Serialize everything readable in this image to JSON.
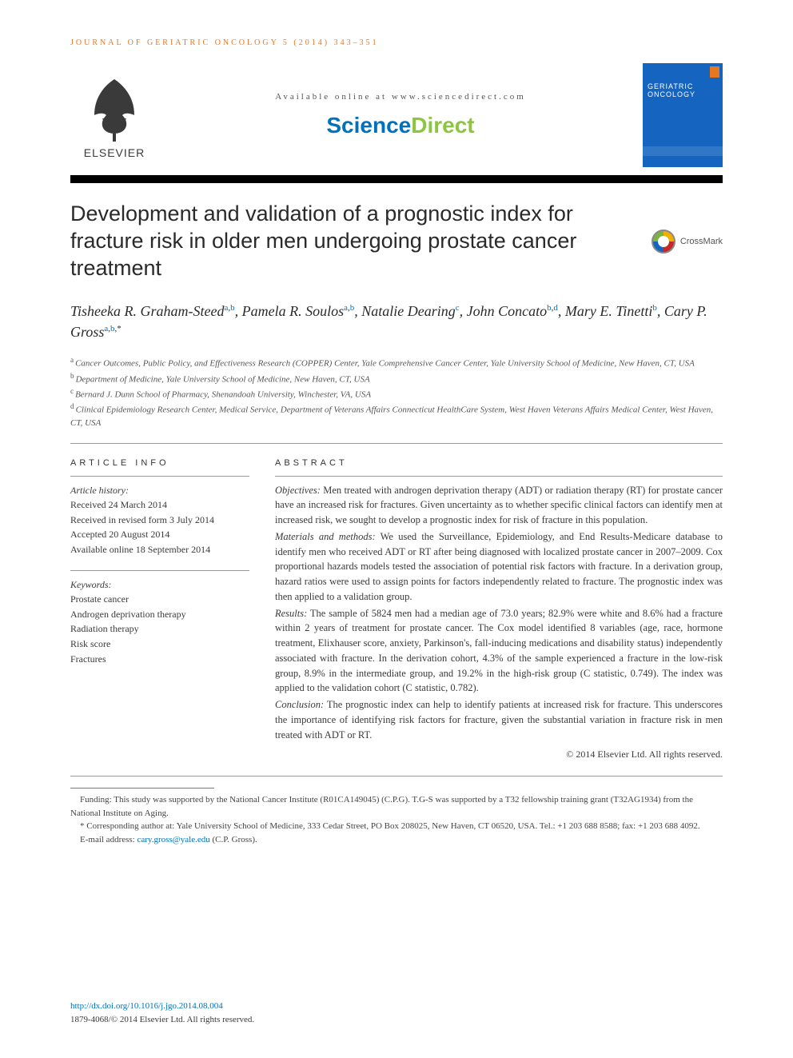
{
  "journal_ref": "JOURNAL OF GERIATRIC ONCOLOGY 5 (2014) 343–351",
  "availability": "Available online at www.sciencedirect.com",
  "sciencedirect": {
    "part1": "Science",
    "part2": "Direct"
  },
  "publisher_label": "ELSEVIER",
  "cover": {
    "title": "GERIATRIC\nONCOLOGY"
  },
  "crossmark_label": "CrossMark",
  "title": "Development and validation of a prognostic index for fracture risk in older men undergoing prostate cancer treatment",
  "authors_html": "Tisheeka R. Graham-Steed<sup><a>a</a>,<a>b</a></sup>, Pamela R. Soulos<sup><a>a</a>,<a>b</a></sup>, Natalie Dearing<sup><a>c</a></sup>, John Concato<sup><a>b</a>,<a>d</a></sup>, Mary E. Tinetti<sup><a>b</a></sup>, Cary P. Gross<sup><a>a</a>,<a>b</a>,*</sup>",
  "affiliations": [
    {
      "sup": "a",
      "text": "Cancer Outcomes, Public Policy, and Effectiveness Research (COPPER) Center, Yale Comprehensive Cancer Center, Yale University School of Medicine, New Haven, CT, USA"
    },
    {
      "sup": "b",
      "text": "Department of Medicine, Yale University School of Medicine, New Haven, CT, USA"
    },
    {
      "sup": "c",
      "text": "Bernard J. Dunn School of Pharmacy, Shenandoah University, Winchester, VA, USA"
    },
    {
      "sup": "d",
      "text": "Clinical Epidemiology Research Center, Medical Service, Department of Veterans Affairs Connecticut HealthCare System, West Haven Veterans Affairs Medical Center, West Haven, CT, USA"
    }
  ],
  "article_info_head": "ARTICLE INFO",
  "abstract_head": "ABSTRACT",
  "history_label": "Article history:",
  "history": [
    "Received 24 March 2014",
    "Received in revised form 3 July 2014",
    "Accepted 20 August 2014",
    "Available online 18 September 2014"
  ],
  "keywords_label": "Keywords:",
  "keywords": [
    "Prostate cancer",
    "Androgen deprivation therapy",
    "Radiation therapy",
    "Risk score",
    "Fractures"
  ],
  "abstract": {
    "objectives_lbl": "Objectives:",
    "objectives": " Men treated with androgen deprivation therapy (ADT) or radiation therapy (RT) for prostate cancer have an increased risk for fractures. Given uncertainty as to whether specific clinical factors can identify men at increased risk, we sought to develop a prognostic index for risk of fracture in this population.",
    "methods_lbl": "Materials and methods:",
    "methods": " We used the Surveillance, Epidemiology, and End Results-Medicare database to identify men who received ADT or RT after being diagnosed with localized prostate cancer in 2007–2009. Cox proportional hazards models tested the association of potential risk factors with fracture. In a derivation group, hazard ratios were used to assign points for factors independently related to fracture. The prognostic index was then applied to a validation group.",
    "results_lbl": "Results:",
    "results": " The sample of 5824 men had a median age of 73.0 years; 82.9% were white and 8.6% had a fracture within 2 years of treatment for prostate cancer. The Cox model identified 8 variables (age, race, hormone treatment, Elixhauser score, anxiety, Parkinson's, fall-inducing medications and disability status) independently associated with fracture. In the derivation cohort, 4.3% of the sample experienced a fracture in the low-risk group, 8.9% in the intermediate group, and 19.2% in the high-risk group (C statistic, 0.749). The index was applied to the validation cohort (C statistic, 0.782).",
    "conclusion_lbl": "Conclusion:",
    "conclusion": " The prognostic index can help to identify patients at increased risk for fracture. This underscores the importance of identifying risk factors for fracture, given the substantial variation in fracture risk in men treated with ADT or RT."
  },
  "copyright": "© 2014 Elsevier Ltd. All rights reserved.",
  "footnotes": {
    "funding": "Funding: This study was supported by the National Cancer Institute (R01CA149045) (C.P.G). T.G-S was supported by a T32 fellowship training grant (T32AG1934) from the National Institute on Aging.",
    "corresponding": "* Corresponding author at: Yale University School of Medicine, 333 Cedar Street, PO Box 208025, New Haven, CT 06520, USA. Tel.: +1 203 688 8588; fax: +1 203 688 4092.",
    "email_lbl": "E-mail address: ",
    "email": "cary.gross@yale.edu",
    "email_suffix": " (C.P. Gross)."
  },
  "footer": {
    "doi": "http://dx.doi.org/10.1016/j.jgo.2014.08.004",
    "issn_line": "1879-4068/© 2014 Elsevier Ltd. All rights reserved."
  },
  "colors": {
    "orange": "#e87722",
    "sd_blue": "#0071bc",
    "sd_green": "#8cc63f",
    "cover_blue": "#1565c0",
    "text": "#3a3a3a"
  }
}
